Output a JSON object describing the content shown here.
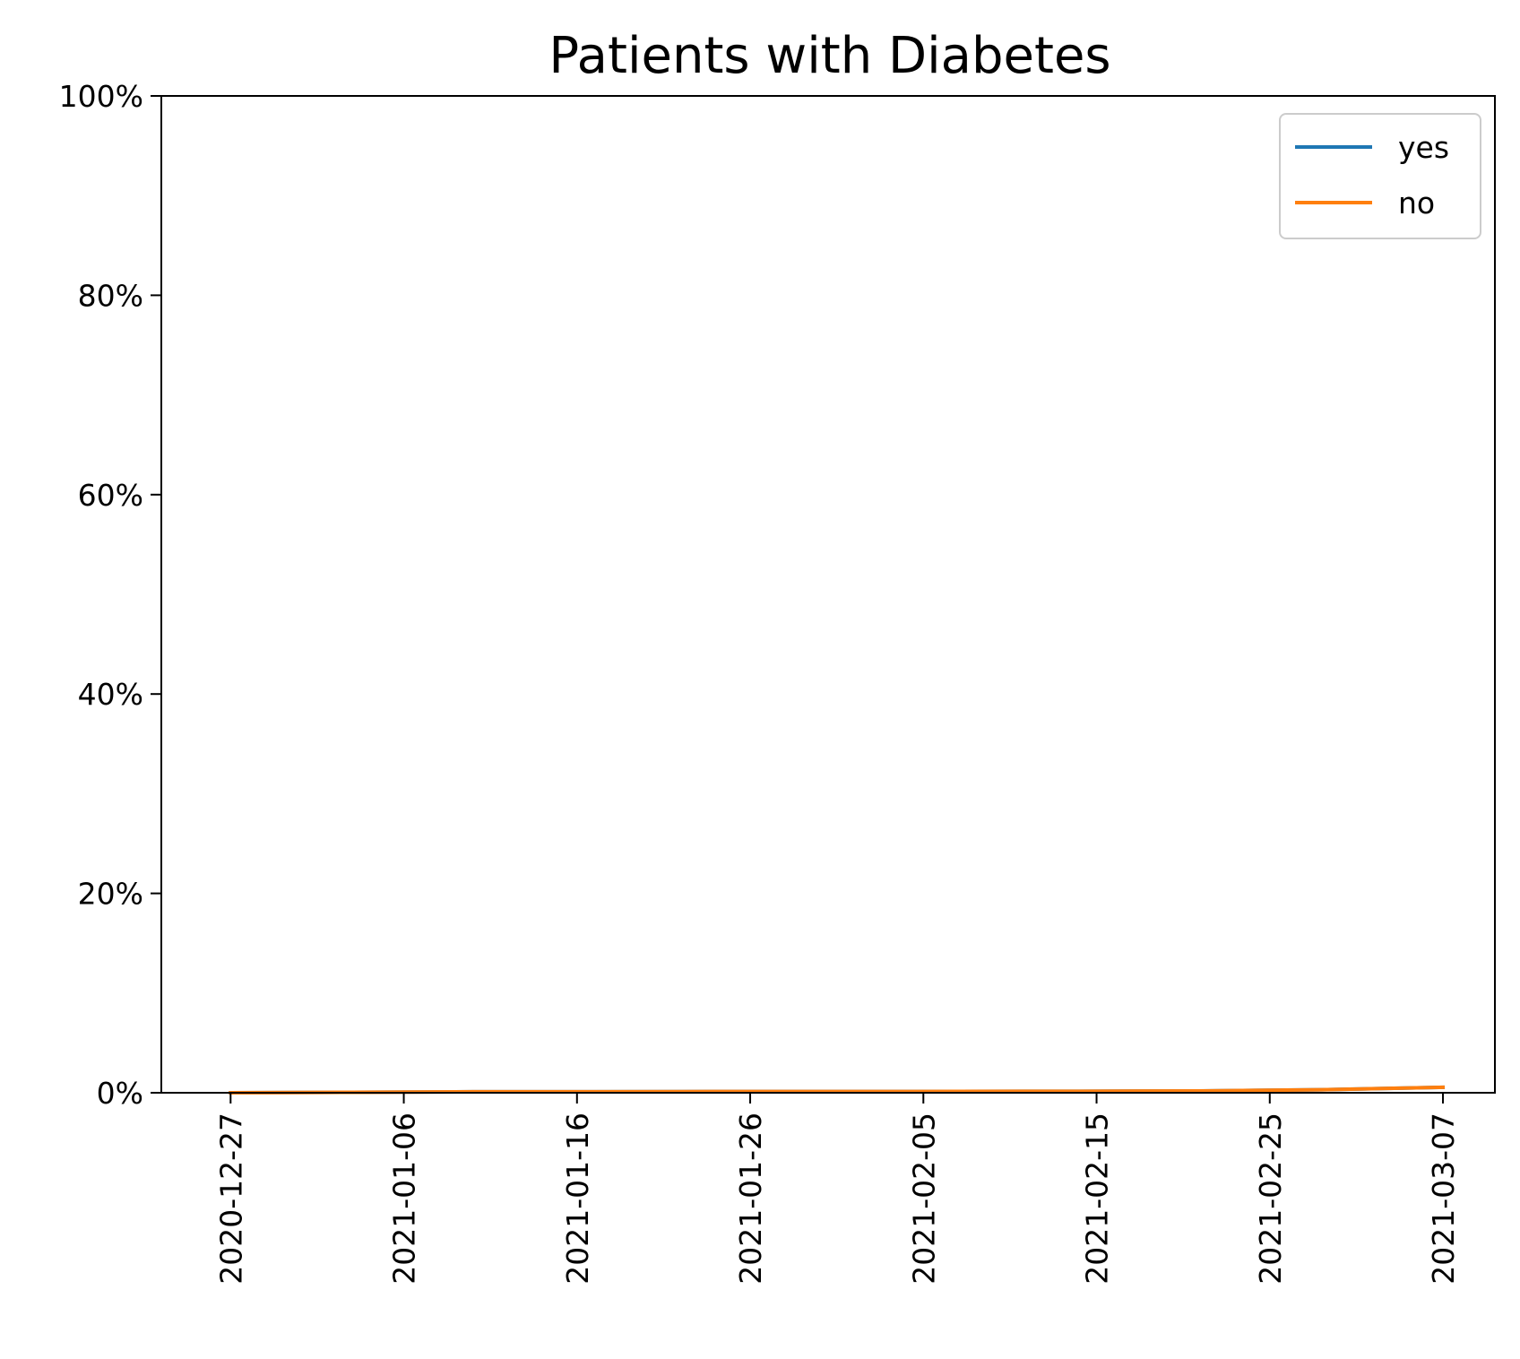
{
  "chart_data": {
    "type": "line",
    "title": "Patients with Diabetes",
    "xlabel": "",
    "ylabel": "",
    "x_ticks": [
      "2020-12-27",
      "2021-01-06",
      "2021-01-16",
      "2021-01-26",
      "2021-02-05",
      "2021-02-15",
      "2021-02-25",
      "2021-03-07"
    ],
    "y_ticks": [
      0,
      20,
      40,
      60,
      80,
      100
    ],
    "y_tick_suffix": "%",
    "ylim": [
      0,
      100
    ],
    "xlim": [
      "2020-12-23",
      "2021-03-10"
    ],
    "grid": false,
    "legend_position": "top-right",
    "x": [
      "2020-12-27",
      "2021-01-03",
      "2021-01-10",
      "2021-01-17",
      "2021-01-24",
      "2021-01-31",
      "2021-02-07",
      "2021-02-14",
      "2021-02-21",
      "2021-02-28",
      "2021-03-07"
    ],
    "series": [
      {
        "name": "yes",
        "color": "#1f77b4",
        "values": [
          0.0,
          0.05,
          0.1,
          0.1,
          0.12,
          0.12,
          0.13,
          0.15,
          0.18,
          0.3,
          0.55
        ]
      },
      {
        "name": "no",
        "color": "#ff7f0e",
        "values": [
          0.0,
          0.05,
          0.1,
          0.1,
          0.12,
          0.12,
          0.13,
          0.15,
          0.18,
          0.3,
          0.55
        ]
      }
    ]
  }
}
